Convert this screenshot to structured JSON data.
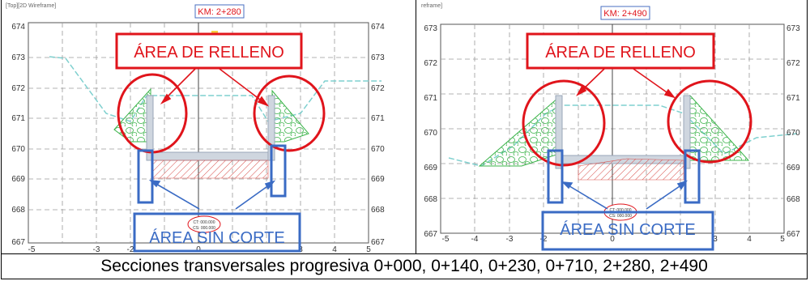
{
  "panels": [
    {
      "view_label": "[Top][2D Wireframe]",
      "km": "KM: 2+280",
      "y_ticks": [
        "674",
        "673",
        "672",
        "671",
        "670",
        "669",
        "668",
        "667"
      ],
      "x_ticks": [
        "-5",
        "-4",
        "-3",
        "-2",
        "-1",
        "0",
        "1",
        "2",
        "3",
        "4",
        "5"
      ],
      "fill_label": "ÁREA DE RELLENO",
      "nocut_label": "ÁREA SIN CORTE",
      "center_label_1": "CT: 000.000",
      "center_label_2": "CS: 000.000"
    },
    {
      "view_label": "reframe]",
      "km": "KM: 2+490",
      "y_ticks": [
        "673",
        "672",
        "671",
        "670",
        "669",
        "668",
        "667"
      ],
      "x_ticks": [
        "-5",
        "-4",
        "-3",
        "-2",
        "-1",
        "0",
        "1",
        "2",
        "3",
        "4",
        "5"
      ],
      "fill_label": "ÁREA DE RELLENO",
      "nocut_label": "ÁREA SIN CORTE",
      "center_label_1": "CT: 000.000",
      "center_label_2": "CS: 000.000"
    }
  ],
  "caption": "Secciones transversales progresiva 0+000, 0+140, 0+230, 0+710, 2+280, 2+490",
  "colors": {
    "annotation_red": "#e0141b",
    "annotation_blue": "#3a6bc4",
    "fill_green": "#3cb44b",
    "hatch_red": "#d9534f",
    "structure": "#9aa7b8",
    "terrain": "#7fd0cf",
    "grid": "#9a9a9a"
  }
}
